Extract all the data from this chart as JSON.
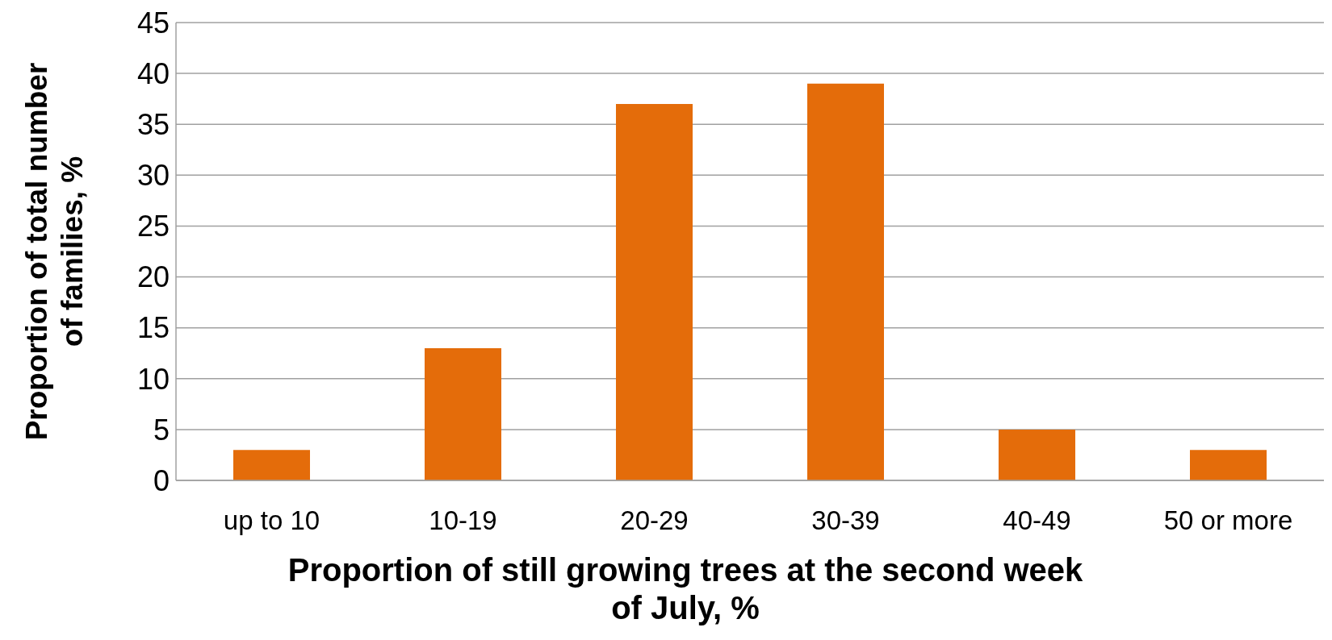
{
  "chart_data": {
    "type": "bar",
    "xlabel": "Proportion of still growing trees at the second week of July, %",
    "ylabel": "Proportion of total number of families, %",
    "categories": [
      "up to 10",
      "10-19",
      "20-29",
      "30-39",
      "40-49",
      "50 or more"
    ],
    "values": [
      3,
      13,
      37,
      39,
      5,
      3
    ],
    "color": "#e46c0a",
    "ylim": [
      0,
      45
    ],
    "yticks": [
      0,
      5,
      10,
      15,
      20,
      25,
      30,
      35,
      40,
      45
    ],
    "grid": "y"
  }
}
